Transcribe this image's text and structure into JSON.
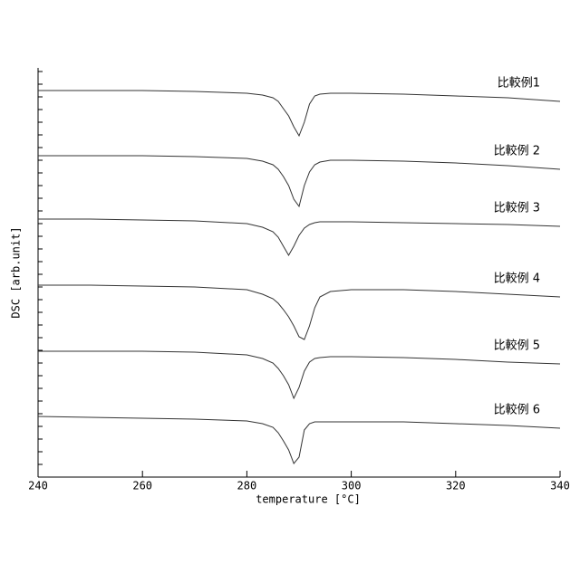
{
  "chart_data": {
    "type": "line",
    "x_label": "temperature [°C]",
    "y_label": "DSC [arb.unit]",
    "x": [
      240,
      250,
      260,
      270,
      280,
      283,
      285,
      286,
      287,
      288,
      289,
      290,
      291,
      292,
      293,
      294,
      296,
      300,
      310,
      320,
      330,
      340
    ],
    "series": [
      {
        "name": "比較例1",
        "color": "#333333",
        "values": [
          427,
          427,
          427,
          426,
          424,
          422,
          419,
          415,
          407,
          399,
          387,
          377,
          392,
          412,
          421,
          423,
          424,
          424,
          423,
          421,
          419,
          415
        ]
      },
      {
        "name": "比較例 2",
        "color": "#333333",
        "values": [
          355,
          355,
          355,
          354,
          352,
          349,
          345,
          340,
          332,
          322,
          307,
          299,
          322,
          337,
          345,
          348,
          350,
          350,
          349,
          347,
          344,
          340
        ]
      },
      {
        "name": "比較例 3",
        "color": "#333333",
        "values": [
          285,
          285,
          284,
          283,
          280,
          276,
          271,
          265,
          255,
          245,
          255,
          267,
          275,
          279,
          281,
          282,
          282,
          282,
          281,
          280,
          279,
          277
        ]
      },
      {
        "name": "比較例 4",
        "color": "#333333",
        "values": [
          212,
          212,
          211,
          210,
          207,
          202,
          197,
          192,
          185,
          177,
          167,
          155,
          152,
          167,
          187,
          199,
          205,
          207,
          207,
          205,
          202,
          199
        ]
      },
      {
        "name": "比較例 5",
        "color": "#333333",
        "values": [
          139,
          139,
          139,
          138,
          135,
          131,
          126,
          120,
          112,
          102,
          87,
          99,
          117,
          127,
          131,
          132,
          133,
          133,
          132,
          130,
          127,
          125
        ]
      },
      {
        "name": "比較例 6",
        "color": "#333333",
        "values": [
          67,
          66,
          65,
          64,
          62,
          59,
          55,
          49,
          40,
          30,
          15,
          22,
          52,
          59,
          61,
          61,
          61,
          61,
          61,
          59,
          57,
          54
        ]
      }
    ],
    "xlim": [
      240,
      340
    ],
    "xticks": [
      240,
      260,
      280,
      300,
      320,
      340
    ],
    "ylim": [
      0,
      452
    ],
    "yticks": [
      0,
      14,
      28,
      42,
      56,
      70,
      84,
      98,
      112,
      126,
      140,
      154,
      168,
      182,
      196,
      210,
      224,
      238,
      252,
      266,
      280,
      294,
      308,
      322,
      336,
      350,
      364,
      378,
      392,
      406,
      420,
      434,
      448
    ]
  }
}
